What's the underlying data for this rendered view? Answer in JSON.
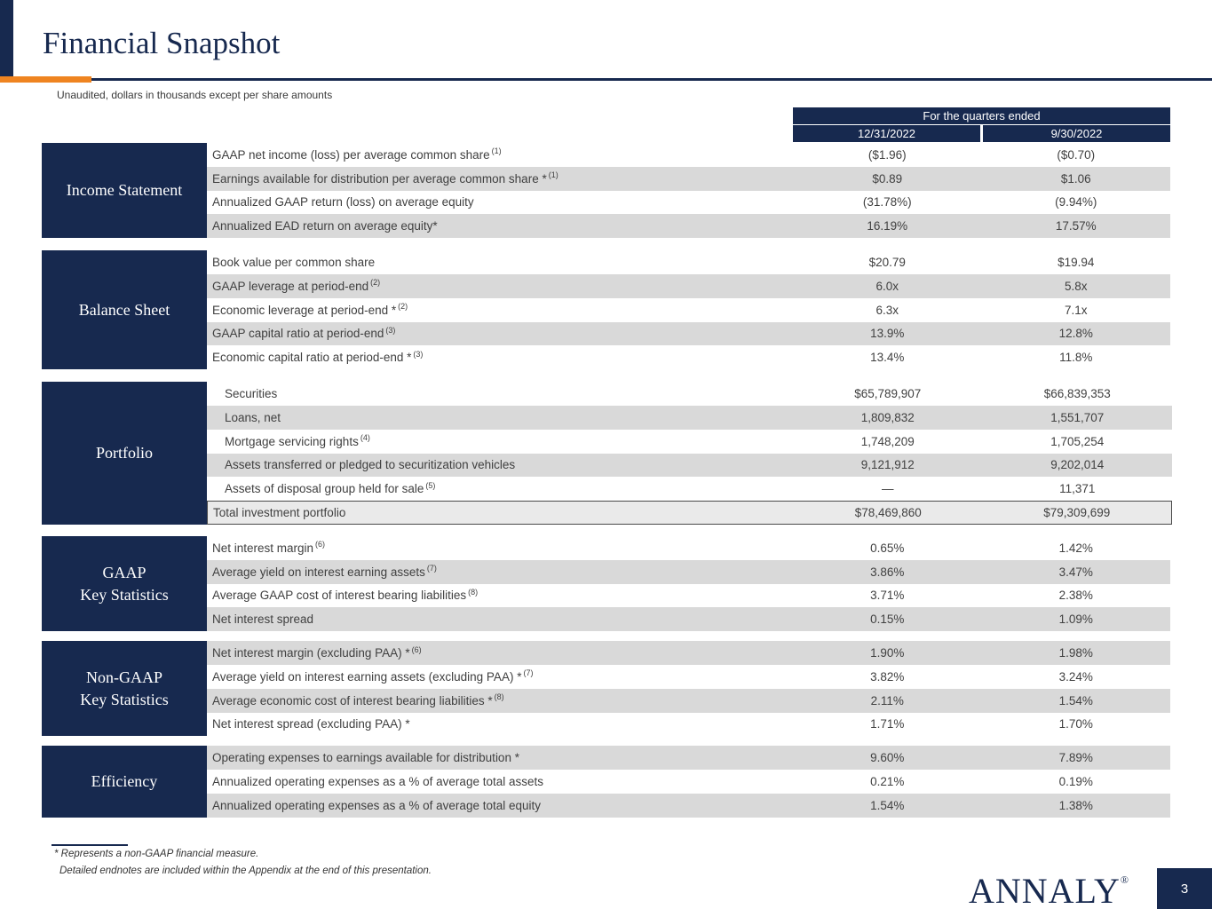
{
  "page": {
    "title": "Financial Snapshot",
    "subtitle": "Unaudited, dollars in thousands except per share amounts",
    "page_number": "3",
    "logo_text": "ANNALY",
    "logo_reg": "®"
  },
  "footnotes": {
    "line1": "* Represents a non-GAAP financial measure.",
    "line2": "Detailed endnotes are included within the Appendix at the end of this presentation."
  },
  "colors": {
    "navy": "#17294f",
    "orange": "#ef8421",
    "row_shade": "#d9d9d9",
    "total_bg": "#eaeaea",
    "body_text": "#404040"
  },
  "table": {
    "quarters_header": "For the quarters ended",
    "columns": [
      "12/31/2022",
      "9/30/2022"
    ],
    "sections": [
      {
        "label_lines": [
          "Income Statement"
        ],
        "shade_offset": 1,
        "indent": false,
        "rows": [
          {
            "label": "GAAP net income (loss) per average common share",
            "note": "(1)",
            "values": [
              "($1.96)",
              "($0.70)"
            ]
          },
          {
            "label": "Earnings available for distribution per average common share",
            "star": true,
            "note": "(1)",
            "values": [
              "$0.89",
              "$1.06"
            ]
          },
          {
            "label": "Annualized GAAP return (loss) on average equity",
            "values": [
              "(31.78%)",
              "(9.94%)"
            ]
          },
          {
            "label": "Annualized EAD return on average equity*",
            "values": [
              "16.19%",
              "17.57%"
            ]
          }
        ]
      },
      {
        "label_lines": [
          "Balance Sheet"
        ],
        "shade_offset": 1,
        "indent": false,
        "rows": [
          {
            "label": "Book value per common share",
            "values": [
              "$20.79",
              "$19.94"
            ]
          },
          {
            "label": "GAAP leverage at period-end",
            "note": "(2)",
            "values": [
              "6.0x",
              "5.8x"
            ]
          },
          {
            "label": "Economic leverage at period-end",
            "star": true,
            "note": "(2)",
            "values": [
              "6.3x",
              "7.1x"
            ]
          },
          {
            "label": "GAAP capital ratio at period-end",
            "note": "(3)",
            "values": [
              "13.9%",
              "12.8%"
            ]
          },
          {
            "label": "Economic capital ratio at period-end",
            "star": true,
            "note": "(3)",
            "values": [
              "13.4%",
              "11.8%"
            ]
          }
        ]
      },
      {
        "label_lines": [
          "Portfolio"
        ],
        "shade_offset": 1,
        "indent": true,
        "rows": [
          {
            "label": "Securities",
            "values": [
              "$65,789,907",
              "$66,839,353"
            ]
          },
          {
            "label": "Loans, net",
            "values": [
              "1,809,832",
              "1,551,707"
            ]
          },
          {
            "label": "Mortgage servicing rights",
            "note": "(4)",
            "values": [
              "1,748,209",
              "1,705,254"
            ]
          },
          {
            "label": "Assets transferred or pledged to securitization vehicles",
            "values": [
              "9,121,912",
              "9,202,014"
            ]
          },
          {
            "label": "Assets of disposal group held for sale",
            "note": "(5)",
            "values": [
              "—",
              "11,371"
            ]
          },
          {
            "label": "Total investment portfolio",
            "total": true,
            "values": [
              "$78,469,860",
              "$79,309,699"
            ]
          }
        ]
      },
      {
        "label_lines": [
          "GAAP",
          "Key Statistics"
        ],
        "shade_offset": 1,
        "indent": false,
        "rows": [
          {
            "label": "Net interest margin",
            "note": "(6)",
            "values": [
              "0.65%",
              "1.42%"
            ]
          },
          {
            "label": "Average yield on interest earning assets",
            "note": "(7)",
            "values": [
              "3.86%",
              "3.47%"
            ]
          },
          {
            "label": "Average GAAP cost of interest bearing liabilities",
            "note": "(8)",
            "values": [
              "3.71%",
              "2.38%"
            ]
          },
          {
            "label": "Net interest spread",
            "values": [
              "0.15%",
              "1.09%"
            ]
          }
        ]
      },
      {
        "label_lines": [
          "Non-GAAP",
          "Key Statistics"
        ],
        "shade_offset": 0,
        "indent": false,
        "rows": [
          {
            "label": "Net interest margin (excluding PAA)",
            "star": true,
            "note": "(6)",
            "values": [
              "1.90%",
              "1.98%"
            ]
          },
          {
            "label": "Average yield on interest earning assets (excluding PAA)",
            "star": true,
            "note": "(7)",
            "values": [
              "3.82%",
              "3.24%"
            ]
          },
          {
            "label": "Average economic cost of interest bearing liabilities",
            "star": true,
            "note": "(8)",
            "values": [
              "2.11%",
              "1.54%"
            ]
          },
          {
            "label": "Net interest spread (excluding PAA) *",
            "values": [
              "1.71%",
              "1.70%"
            ]
          }
        ]
      },
      {
        "label_lines": [
          "Efficiency"
        ],
        "shade_offset": 0,
        "indent": false,
        "rows": [
          {
            "label": "Operating expenses to earnings available for distribution *",
            "values": [
              "9.60%",
              "7.89%"
            ]
          },
          {
            "label": "Annualized operating expenses as a % of average total assets",
            "values": [
              "0.21%",
              "0.19%"
            ]
          },
          {
            "label": "Annualized operating expenses as a % of average total equity",
            "values": [
              "1.54%",
              "1.38%"
            ]
          }
        ]
      }
    ]
  }
}
